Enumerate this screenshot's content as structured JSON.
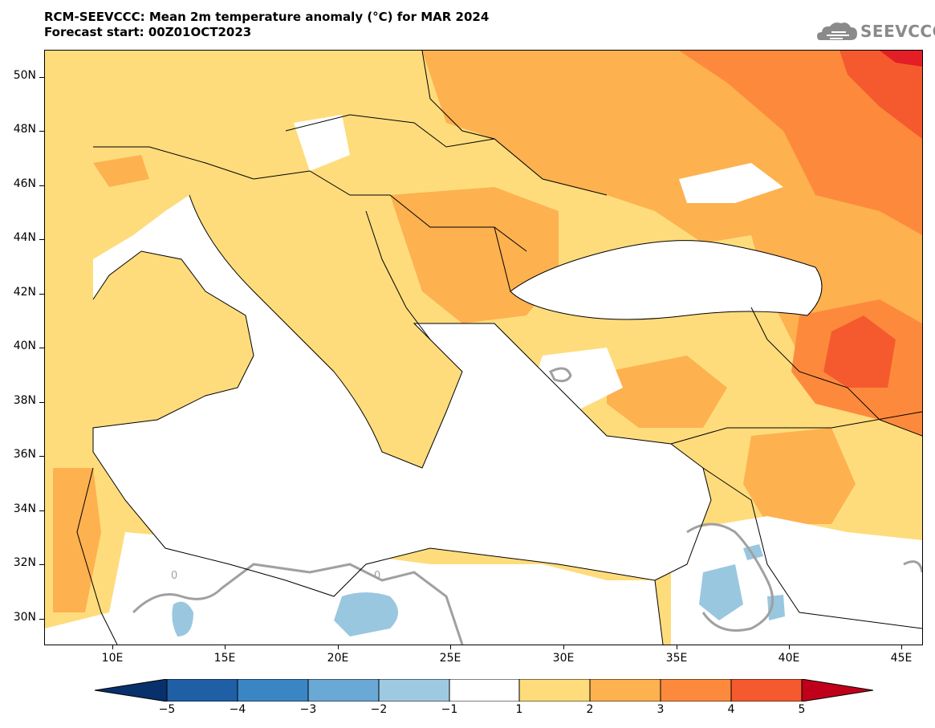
{
  "header": {
    "title_line1": "RCM-SEEVCCC: Mean 2m temperature anomaly (°C) for MAR 2024",
    "title_line2": "Forecast start: 00Z01OCT2023",
    "logo_text": "SEEVCCC"
  },
  "map": {
    "variable": "Mean 2m temperature anomaly (°C)",
    "lon_range": [
      7,
      45.8
    ],
    "lat_range": [
      29,
      51
    ],
    "y_tick_labels": [
      "50N",
      "48N",
      "46N",
      "44N",
      "42N",
      "40N",
      "38N",
      "36N",
      "34N",
      "32N",
      "30N"
    ],
    "x_tick_labels": [
      "10E",
      "15E",
      "20E",
      "25E",
      "30E",
      "35E",
      "40E",
      "45E"
    ],
    "contour_label": "0",
    "colors": {
      "land_default": "#fedc7c",
      "anom_2_3": "#fdb14f",
      "anom_3_4": "#fd8a3c",
      "anom_4_5": "#f55a2e",
      "anom_gt5": "#e31e26",
      "anom_-2_-1": "#99c7e0",
      "neutral": "#ffffff",
      "contour_zero": "#a0a0a0"
    }
  },
  "colorbar": {
    "labels": [
      "−5",
      "−4",
      "−3",
      "−2",
      "−1",
      "1",
      "2",
      "3",
      "4",
      "5"
    ],
    "colors": [
      "#08306b",
      "#1f5fa6",
      "#3a86c4",
      "#6aa8d6",
      "#9ecae1",
      "#ffffff",
      "#fedc7c",
      "#fdb14f",
      "#fd8a3c",
      "#f55a2e",
      "#e31e26",
      "#c0001a"
    ]
  }
}
